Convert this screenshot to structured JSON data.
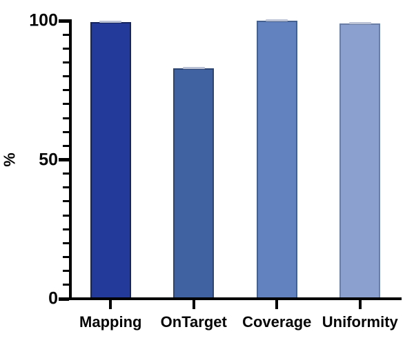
{
  "chart_data": {
    "type": "bar",
    "title": "",
    "categories": [
      "Mapping",
      "OnTarget",
      "Coverage",
      "Uniformity"
    ],
    "values": [
      99.5,
      83,
      100,
      99
    ],
    "bar_colors": [
      "#243a9b",
      "#4162a0",
      "#6182be",
      "#8ca0d0"
    ],
    "bar_border_colors": [
      "#17255f",
      "#2c4573",
      "#45608f",
      "#6b7fa6"
    ],
    "cap_color": "#bcc2d6",
    "xlabel": "",
    "ylabel": "%",
    "ylim": [
      0,
      100
    ],
    "yticks": [
      0,
      50,
      100
    ],
    "ytick_labels": [
      "0",
      "50",
      "100"
    ],
    "minor_tick_step": 5,
    "grid": false,
    "legend": null,
    "axis_color": "#000000",
    "text_color": "#050505",
    "background_color": "#ffffff"
  }
}
